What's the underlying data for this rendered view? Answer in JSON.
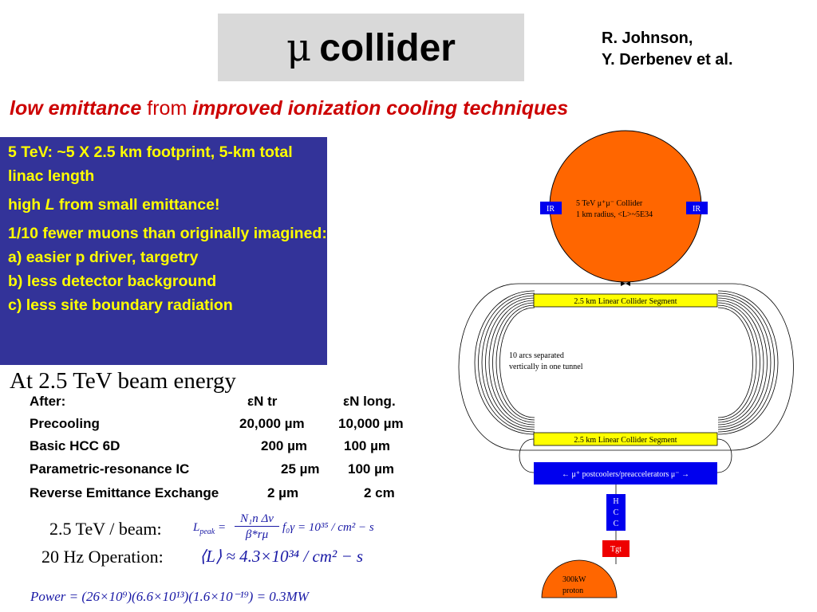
{
  "title": {
    "symbol": "μ",
    "text": "collider"
  },
  "authors": {
    "line1": "R. Johnson,",
    "line2": "Y. Derbenev et al."
  },
  "subtitle": {
    "part1": "low emittance",
    "part2": "from",
    "part3": "improved ionization cooling techniques"
  },
  "blue_box": {
    "p1": "5 TeV: ~5 X 2.5 km footprint, 5-km total linac length",
    "p2_a": "high ",
    "p2_b": "L",
    "p2_c": " from small emittance!",
    "p3": "1/10 fewer muons than originally imagined:",
    "p3_a": "a) easier p driver, targetry",
    "p3_b": "b) less detector background",
    "p3_c": "c) less site boundary radiation"
  },
  "beam_energy": "At 2.5 TeV beam energy",
  "table": {
    "header": {
      "label": "After:",
      "col1": "εN tr",
      "col2": "εN long."
    },
    "rows": [
      {
        "label": "Precooling",
        "col1": "20,000 µm",
        "col2": "10,000 µm"
      },
      {
        "label": "Basic HCC 6D",
        "col1": "200 µm",
        "col2": "100 µm"
      },
      {
        "label": "Parametric-resonance IC",
        "col1": "25  µm",
        "col2": "100 µm"
      },
      {
        "label": "Reverse Emittance Exchange",
        "col1": "2  µm",
        "col2": "2 cm"
      }
    ]
  },
  "luminosity": {
    "label": "2.5 TeV / beam:",
    "label2": "20 Hz Operation:",
    "lpeak_lhs": "L",
    "lpeak_sub": "peak",
    "lpeak_num": "N₁n Δν",
    "lpeak_den": "β*rμ",
    "lpeak_rhs": "f₀γ = 10³⁵ / cm² − s",
    "avg": "⟨L⟩ ≈ 4.3×10³⁴ / cm² − s",
    "power": "Power = (26×10⁹)(6.6×10¹³)(1.6×10⁻¹⁹) = 0.3MW"
  },
  "diagram": {
    "ring_line1": "5 TeV  μ⁺μ⁻ Collider",
    "ring_line2": "1 km radius, <L>~5E34",
    "ir_left": "IR",
    "ir_right": "IR",
    "linac_top": "2.5 km Linear Collider Segment",
    "linac_bottom": "2.5 km Linear Collider Segment",
    "arcs_line1": "10 arcs separated",
    "arcs_line2": "vertically in one tunnel",
    "postcoolers": "← μ⁺    postcoolers/preaccelerators   μ⁻ →",
    "hcc": [
      "H",
      "C",
      "C"
    ],
    "tgt": "Tgt",
    "proton_line1": "300kW",
    "proton_line2": "proton",
    "colors": {
      "ring": "#ff6600",
      "linac": "#ffff00",
      "ir": "#0000ee",
      "blue": "#0000ee",
      "tgt": "#ee0000"
    }
  }
}
